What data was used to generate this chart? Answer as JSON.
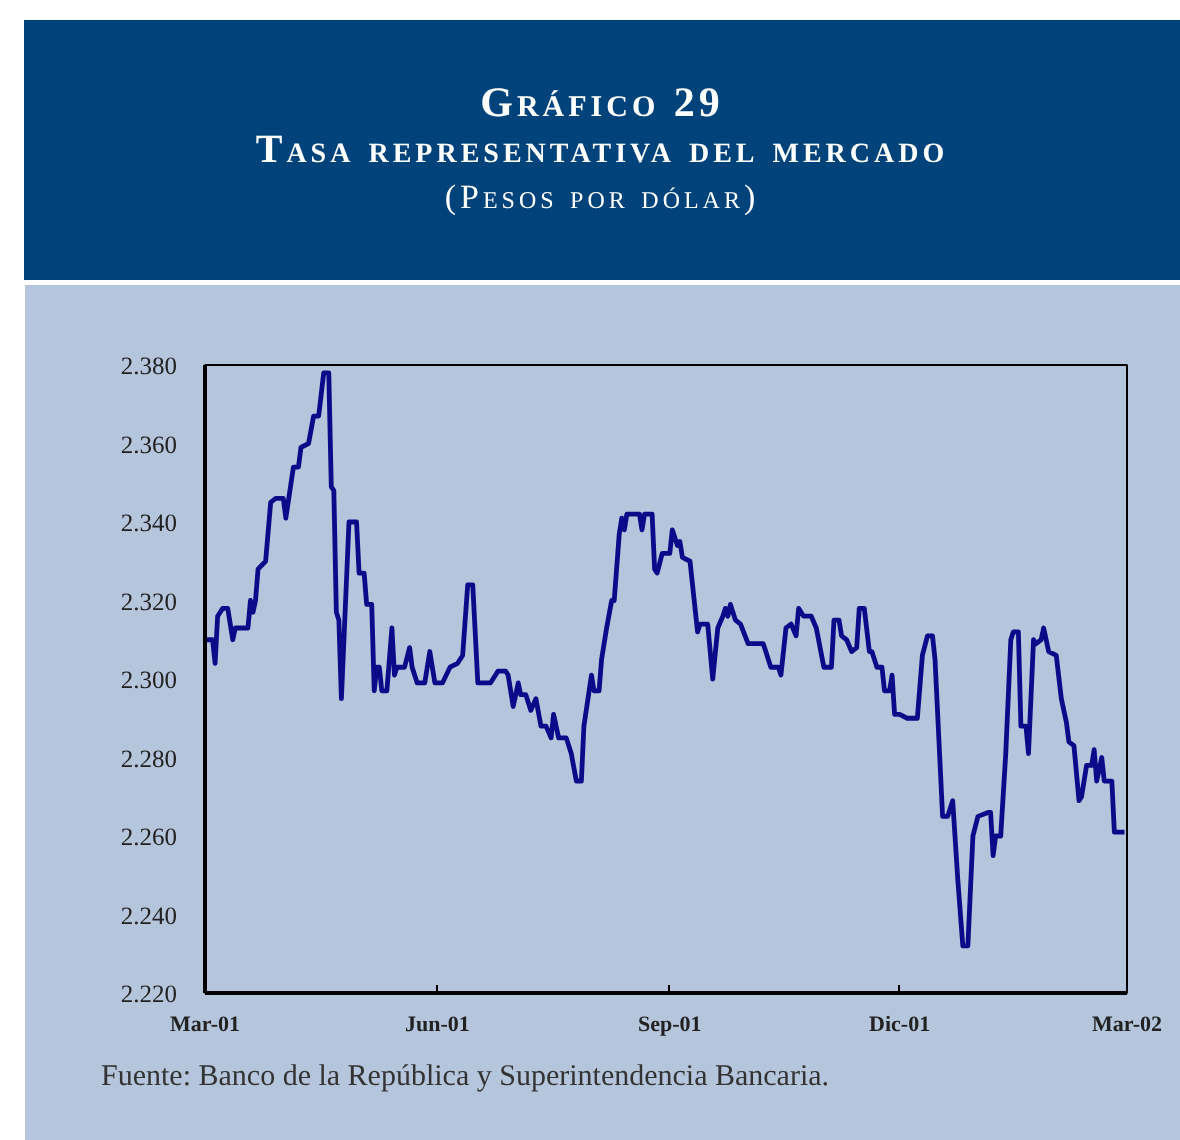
{
  "chart_data": {
    "type": "line",
    "title": "Gráfico 29",
    "subtitle": "Tasa representativa del mercado",
    "ylabel": "(Pesos por dólar)",
    "annotations": [
      "Fuente: Banco de la República y Superintendencia Bancaria."
    ],
    "color": "#0b0b8a",
    "xlim": [
      "2001-03-01",
      "2002-03-01"
    ],
    "xticks": [
      {
        "value": "2001-03-01",
        "label": "Mar-01"
      },
      {
        "value": "2001-06-01",
        "label": "Jun-01"
      },
      {
        "value": "2001-09-01",
        "label": "Sep-01"
      },
      {
        "value": "2001-12-01",
        "label": "Dic-01"
      },
      {
        "value": "2002-03-01",
        "label": "Mar-02"
      }
    ],
    "ylim": [
      2220,
      2380
    ],
    "yticks": [
      {
        "value": 2220,
        "label": "2.220"
      },
      {
        "value": 2240,
        "label": "2.240"
      },
      {
        "value": 2260,
        "label": "2.260"
      },
      {
        "value": 2280,
        "label": "2.280"
      },
      {
        "value": 2300,
        "label": "2.300"
      },
      {
        "value": 2320,
        "label": "2.320"
      },
      {
        "value": 2340,
        "label": "2.340"
      },
      {
        "value": 2360,
        "label": "2.360"
      },
      {
        "value": 2380,
        "label": "2.380"
      }
    ],
    "x": [
      "2001-03-01",
      "2001-03-04",
      "2001-03-05",
      "2001-03-06",
      "2001-03-08",
      "2001-03-10",
      "2001-03-12",
      "2001-03-13",
      "2001-03-18",
      "2001-03-19",
      "2001-03-20",
      "2001-03-21",
      "2001-03-22",
      "2001-03-25",
      "2001-03-27",
      "2001-03-29",
      "2001-04-01",
      "2001-04-02",
      "2001-04-05",
      "2001-04-07",
      "2001-04-08",
      "2001-04-11",
      "2001-04-13",
      "2001-04-15",
      "2001-04-17",
      "2001-04-19",
      "2001-04-20",
      "2001-04-21",
      "2001-04-22",
      "2001-04-23",
      "2001-04-24",
      "2001-04-27",
      "2001-04-30",
      "2001-05-01",
      "2001-05-03",
      "2001-05-04",
      "2001-05-06",
      "2001-05-07",
      "2001-05-08",
      "2001-05-09",
      "2001-05-10",
      "2001-05-12",
      "2001-05-14",
      "2001-05-15",
      "2001-05-16",
      "2001-05-19",
      "2001-05-21",
      "2001-05-22",
      "2001-05-24",
      "2001-05-27",
      "2001-05-29",
      "2001-05-31",
      "2001-06-03",
      "2001-06-06",
      "2001-06-09",
      "2001-06-11",
      "2001-06-13",
      "2001-06-15",
      "2001-06-17",
      "2001-06-22",
      "2001-06-25",
      "2001-06-28",
      "2001-06-29",
      "2001-07-01",
      "2001-07-03",
      "2001-07-04",
      "2001-07-06",
      "2001-07-08",
      "2001-07-10",
      "2001-07-12",
      "2001-07-14",
      "2001-07-16",
      "2001-07-17",
      "2001-07-19",
      "2001-07-22",
      "2001-07-24",
      "2001-07-26",
      "2001-07-28",
      "2001-07-29",
      "2001-08-01",
      "2001-08-02",
      "2001-08-04",
      "2001-08-05",
      "2001-08-07",
      "2001-08-09",
      "2001-08-10",
      "2001-08-12",
      "2001-08-13",
      "2001-08-14",
      "2001-08-15",
      "2001-08-20",
      "2001-08-21",
      "2001-08-22",
      "2001-08-25",
      "2001-08-26",
      "2001-08-27",
      "2001-08-29",
      "2001-09-01",
      "2001-09-02",
      "2001-09-04",
      "2001-09-05",
      "2001-09-06",
      "2001-09-09",
      "2001-09-12",
      "2001-09-13",
      "2001-09-16",
      "2001-09-18",
      "2001-09-20",
      "2001-09-22",
      "2001-09-23",
      "2001-09-24",
      "2001-09-25",
      "2001-09-27",
      "2001-09-29",
      "2001-10-02",
      "2001-10-08",
      "2001-10-09",
      "2001-10-11",
      "2001-10-14",
      "2001-10-15",
      "2001-10-17",
      "2001-10-19",
      "2001-10-21",
      "2001-10-22",
      "2001-10-24",
      "2001-10-27",
      "2001-10-29",
      "2001-11-01",
      "2001-11-04",
      "2001-11-05",
      "2001-11-07",
      "2001-11-08",
      "2001-11-10",
      "2001-11-12",
      "2001-11-14",
      "2001-11-15",
      "2001-11-17",
      "2001-11-19",
      "2001-11-20",
      "2001-11-22",
      "2001-11-24",
      "2001-11-25",
      "2001-11-27",
      "2001-11-28",
      "2001-11-29",
      "2001-12-01",
      "2001-12-04",
      "2001-12-08",
      "2001-12-10",
      "2001-12-12",
      "2001-12-14",
      "2001-12-15",
      "2001-12-18",
      "2001-12-20",
      "2001-12-22",
      "2001-12-24",
      "2001-12-26",
      "2001-12-28",
      "2001-12-30",
      "2002-01-01",
      "2002-01-05",
      "2002-01-06",
      "2002-01-07",
      "2002-01-08",
      "2002-01-10",
      "2002-01-12",
      "2002-01-14",
      "2002-01-15",
      "2002-01-17",
      "2002-01-18",
      "2002-01-20",
      "2002-01-21",
      "2002-01-23",
      "2002-01-24",
      "2002-01-26",
      "2002-01-27",
      "2002-01-29",
      "2002-02-01",
      "2002-02-03",
      "2002-02-05",
      "2002-02-06",
      "2002-02-08",
      "2002-02-10",
      "2002-02-11",
      "2002-02-13",
      "2002-02-15",
      "2002-02-16",
      "2002-02-17",
      "2002-02-19",
      "2002-02-20",
      "2002-02-23",
      "2002-02-24",
      "2002-02-28"
    ],
    "values": [
      2310,
      2310,
      2304,
      2316,
      2318,
      2318,
      2310,
      2313,
      2313,
      2320,
      2317,
      2320,
      2328,
      2330,
      2345,
      2346,
      2346,
      2341,
      2354,
      2354,
      2359,
      2360,
      2367,
      2367,
      2378,
      2378,
      2349,
      2348,
      2317,
      2315,
      2295,
      2340,
      2340,
      2327,
      2327,
      2319,
      2319,
      2297,
      2303,
      2303,
      2297,
      2297,
      2313,
      2301,
      2303,
      2303,
      2308,
      2303,
      2299,
      2299,
      2307,
      2299,
      2299,
      2303,
      2304,
      2306,
      2324,
      2324,
      2299,
      2299,
      2302,
      2302,
      2301,
      2293,
      2299,
      2296,
      2296,
      2292,
      2295,
      2288,
      2288,
      2285,
      2291,
      2285,
      2285,
      2281,
      2274,
      2274,
      2288,
      2301,
      2297,
      2297,
      2305,
      2313,
      2320,
      2320,
      2337,
      2341,
      2338,
      2342,
      2342,
      2338,
      2342,
      2342,
      2328,
      2327,
      2332,
      2332,
      2338,
      2334,
      2335,
      2331,
      2330,
      2312,
      2314,
      2314,
      2300,
      2313,
      2316,
      2318,
      2316,
      2319,
      2315,
      2314,
      2309,
      2309,
      2307,
      2303,
      2303,
      2301,
      2313,
      2314,
      2311,
      2318,
      2316,
      2316,
      2313,
      2303,
      2303,
      2315,
      2315,
      2311,
      2310,
      2307,
      2308,
      2318,
      2318,
      2307,
      2307,
      2303,
      2303,
      2297,
      2297,
      2301,
      2291,
      2291,
      2290,
      2290,
      2306,
      2311,
      2311,
      2305,
      2265,
      2265,
      2269,
      2249,
      2232,
      2232,
      2260,
      2265,
      2266,
      2266,
      2255,
      2260,
      2260,
      2281,
      2310,
      2312,
      2312,
      2288,
      2288,
      2281,
      2310,
      2309,
      2310,
      2313,
      2307,
      2306,
      2295,
      2289,
      2284,
      2283,
      2269,
      2270,
      2278,
      2278,
      2282,
      2274,
      2280,
      2274,
      2274,
      2261,
      2261
    ]
  }
}
